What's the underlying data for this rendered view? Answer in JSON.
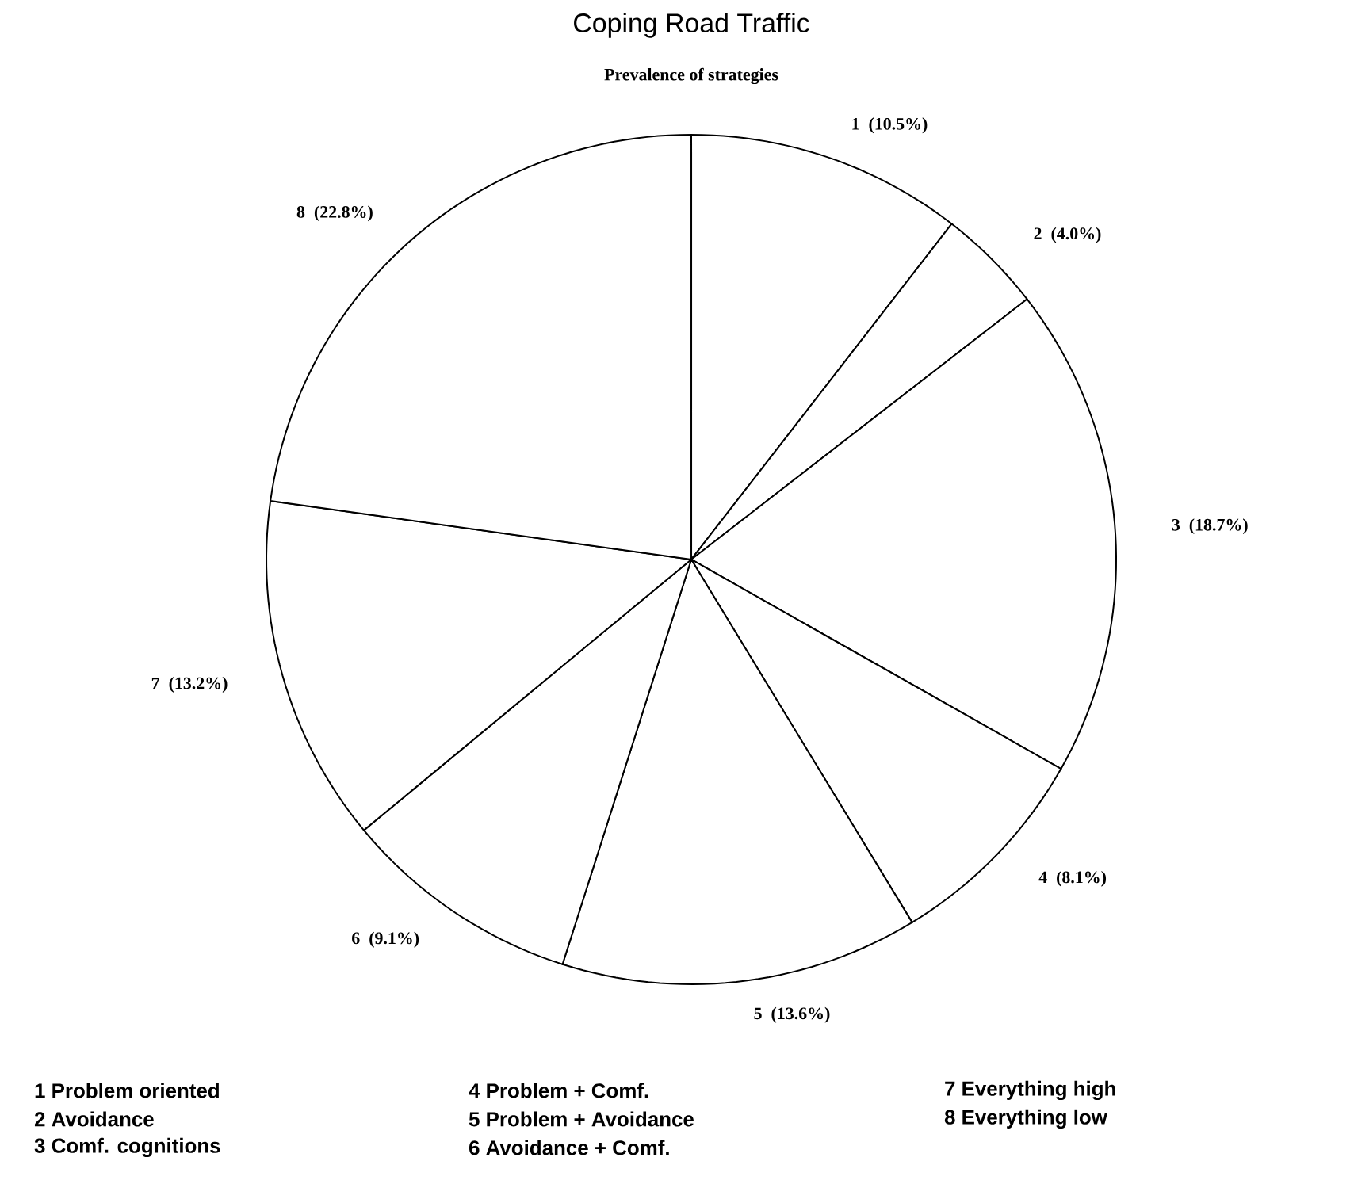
{
  "chart_data": {
    "type": "pie",
    "title": "Coping Road Traffic",
    "subtitle": "Prevalence of strategies",
    "categories": [
      "1",
      "2",
      "3",
      "4",
      "5",
      "6",
      "7",
      "8"
    ],
    "values": [
      10.5,
      4.0,
      18.7,
      8.1,
      13.6,
      9.1,
      13.2,
      22.8
    ],
    "value_labels": [
      "(10.5%)",
      "(4.0%)",
      "(18.7%)",
      "(8.1%)",
      "(13.6%)",
      "(9.1%)",
      "(13.2%)",
      "(22.8%)"
    ],
    "colors": [
      "#ffffff",
      "#ffffff",
      "#ffffff",
      "#ffffff",
      "#ffffff",
      "#ffffff",
      "#ffffff",
      "#ffffff"
    ],
    "annotations": [
      "1 Problem oriented",
      "2 Avoidance",
      "3 Comf. cognitions",
      "4 Problem + Comf.",
      "5 Problem + Avoidance",
      "6 Avoidance + Comf.",
      "7 Everything high",
      "8 Everything low"
    ]
  }
}
